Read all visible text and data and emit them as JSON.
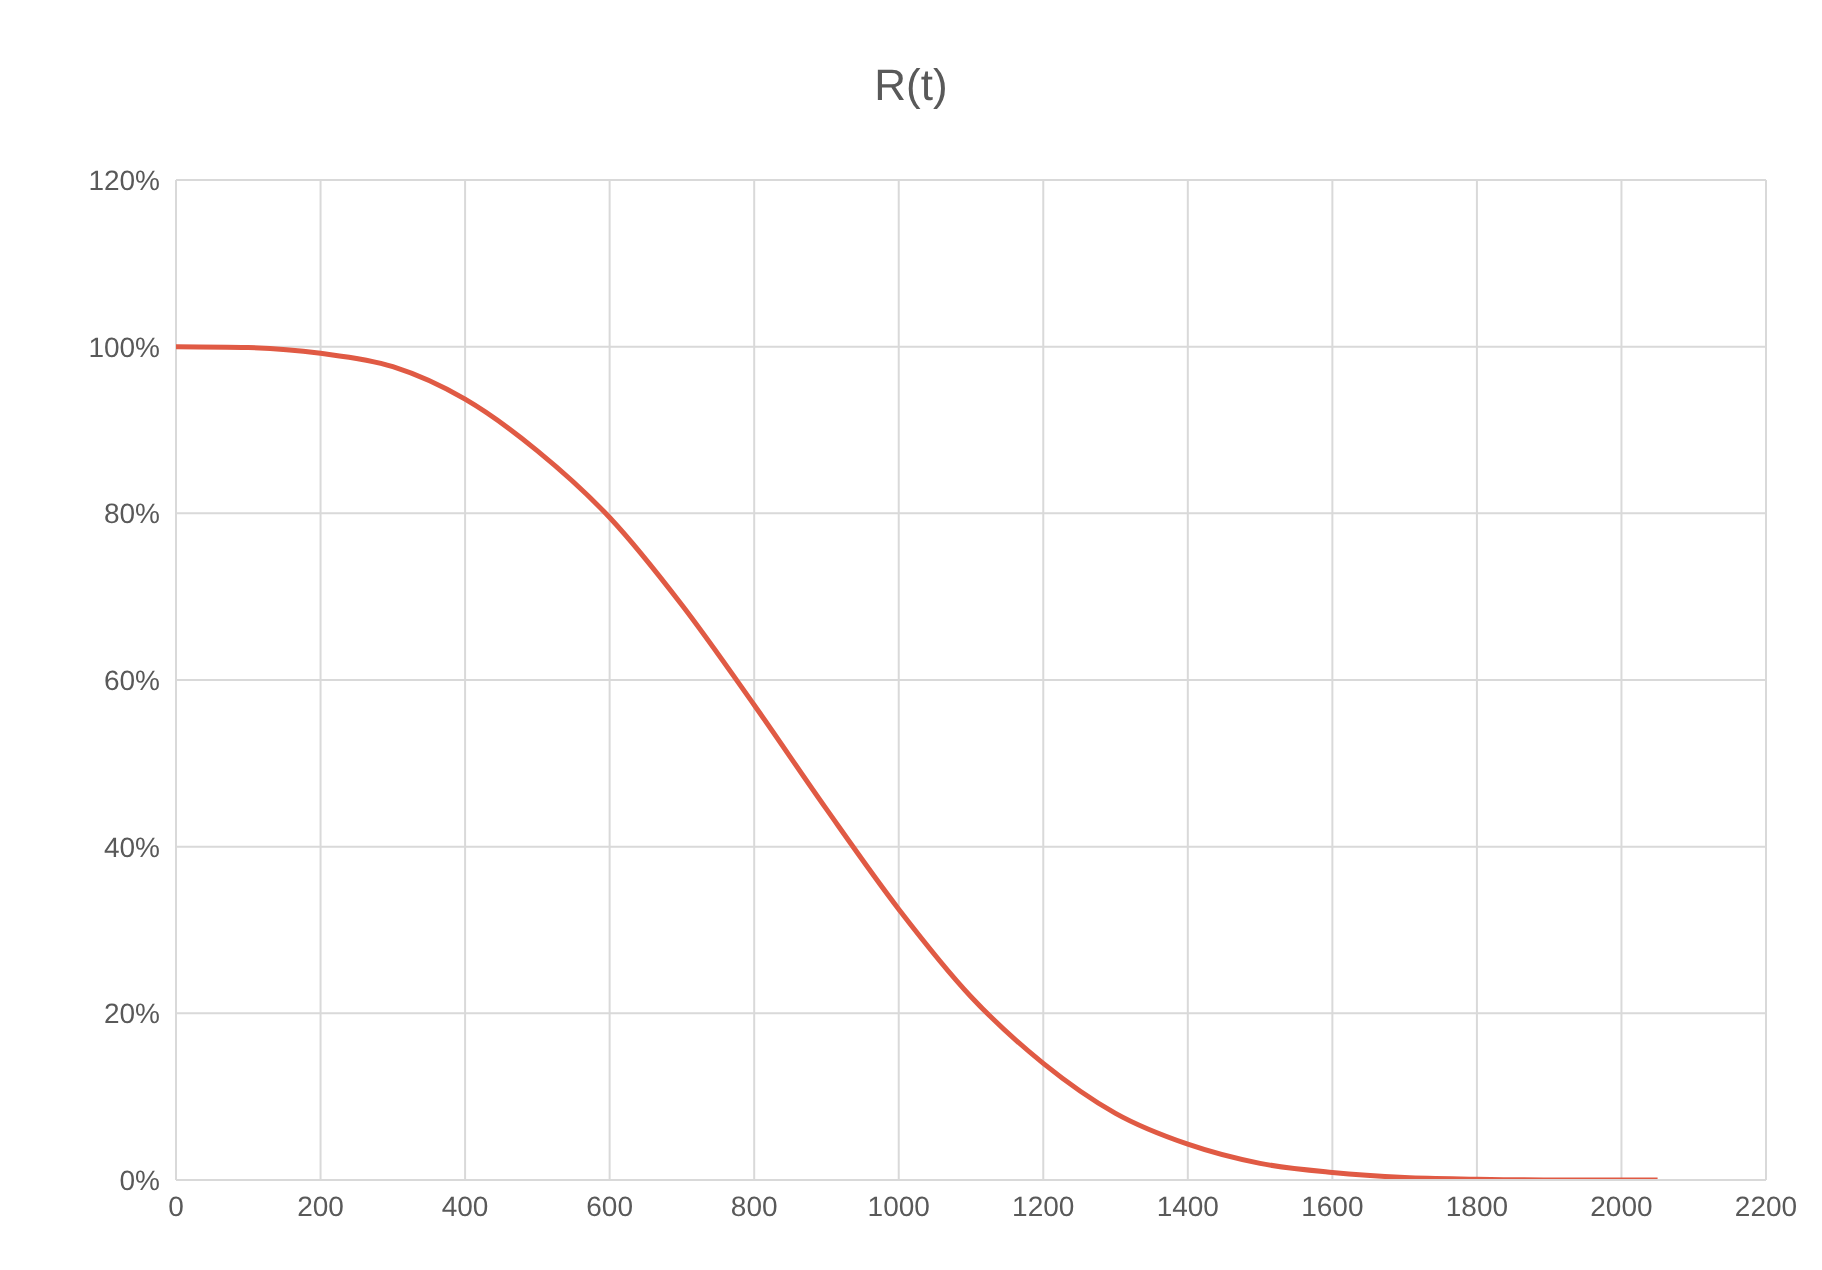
{
  "chart_data": {
    "type": "line",
    "title": "R(t)",
    "x": [
      0,
      100,
      200,
      300,
      400,
      500,
      600,
      700,
      800,
      900,
      1000,
      1100,
      1200,
      1300,
      1400,
      1500,
      1600,
      1700,
      1800,
      1900,
      2000,
      2050
    ],
    "series": [
      {
        "color": "#e05a44",
        "values": [
          100,
          99.9,
          99.2,
          97.6,
          93.7,
          87.5,
          79.5,
          69,
          57,
          44.5,
          32.5,
          22,
          14,
          8,
          4.3,
          2,
          0.9,
          0.3,
          0.1,
          0,
          0,
          0
        ]
      }
    ],
    "xlim": [
      0,
      2200
    ],
    "xticks": [
      0,
      200,
      400,
      600,
      800,
      1000,
      1200,
      1400,
      1600,
      1800,
      2000,
      2200
    ],
    "ylim": [
      0,
      120
    ],
    "yticks": [
      {
        "value": 0,
        "label": "0%"
      },
      {
        "value": 20,
        "label": "20%"
      },
      {
        "value": 40,
        "label": "40%"
      },
      {
        "value": 60,
        "label": "60%"
      },
      {
        "value": 80,
        "label": "80%"
      },
      {
        "value": 100,
        "label": "100%"
      },
      {
        "value": 120,
        "label": "120%"
      }
    ],
    "grid": true,
    "marker": "none",
    "line_style": "solid",
    "legend": false
  }
}
